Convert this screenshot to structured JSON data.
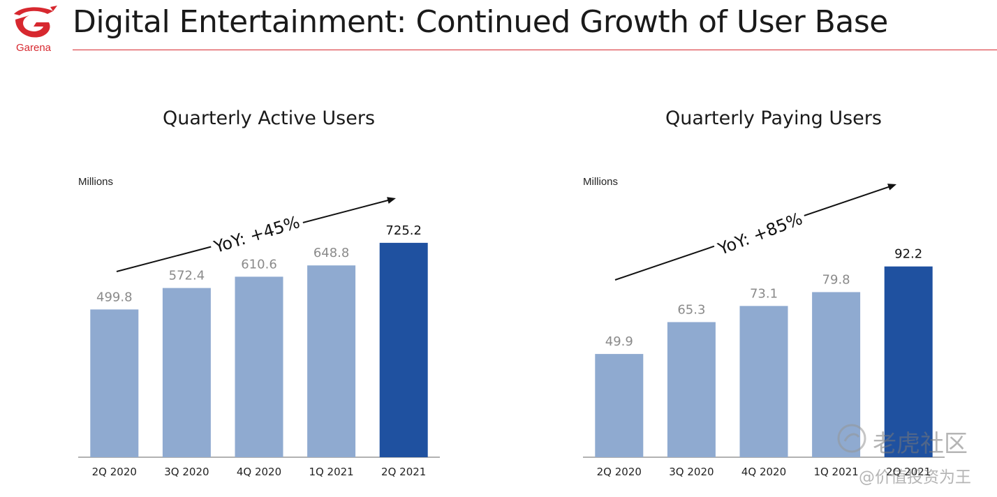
{
  "header": {
    "brand": "Garena",
    "title": "Digital Entertainment: Continued Growth of User Base"
  },
  "colors": {
    "accent": "#d7282f",
    "bar_light": "#8faad0",
    "bar_dark": "#1f51a0",
    "axis": "#999999"
  },
  "chart_data": [
    {
      "type": "bar",
      "title": "Quarterly Active Users",
      "unit_label": "Millions",
      "categories": [
        "2Q 2020",
        "3Q 2020",
        "4Q 2020",
        "1Q 2021",
        "2Q 2021"
      ],
      "values": [
        499.8,
        572.4,
        610.6,
        648.8,
        725.2
      ],
      "value_labels": [
        "499.8",
        "572.4",
        "610.6",
        "648.8",
        "725.2"
      ],
      "highlight_index": 4,
      "annotation": "YoY: +45%",
      "ylim": [
        0,
        800
      ],
      "grid": false,
      "legend": "none"
    },
    {
      "type": "bar",
      "title": "Quarterly Paying Users",
      "unit_label": "Millions",
      "categories": [
        "2Q 2020",
        "3Q 2020",
        "4Q 2020",
        "1Q 2021",
        "2Q 2021"
      ],
      "values": [
        49.9,
        65.3,
        73.1,
        79.8,
        92.2
      ],
      "value_labels": [
        "49.9",
        "65.3",
        "73.1",
        "79.8",
        "92.2"
      ],
      "highlight_index": 4,
      "annotation": "YoY: +85%",
      "ylim": [
        0,
        100
      ],
      "grid": false,
      "legend": "none"
    }
  ],
  "watermark": {
    "line1": "老虎社区",
    "line2": "@价值投资为王"
  }
}
